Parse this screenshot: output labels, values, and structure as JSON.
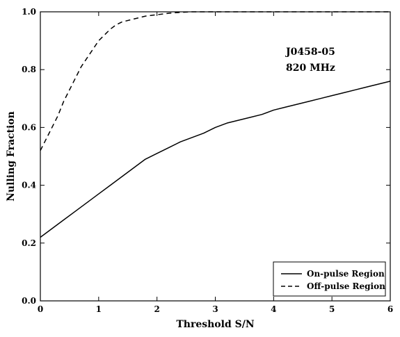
{
  "chart_data": {
    "type": "line",
    "title": "",
    "xlabel": "Threshold S/N",
    "ylabel": "Nulling Fraction",
    "xlim": [
      0,
      6
    ],
    "ylim": [
      0.0,
      1.0
    ],
    "xticks": [
      0,
      1,
      2,
      3,
      4,
      5,
      6
    ],
    "yticks": [
      0.0,
      0.2,
      0.4,
      0.6,
      0.8,
      1.0
    ],
    "xtick_labels": [
      "0",
      "1",
      "2",
      "3",
      "4",
      "5",
      "6"
    ],
    "ytick_labels": [
      "0.0",
      "0.2",
      "0.4",
      "0.6",
      "0.8",
      "1.0"
    ],
    "grid": false,
    "legend_position": "bottom-right",
    "annotations": [
      "J0458-05",
      "820 MHz"
    ],
    "series": [
      {
        "name": "On-pulse Region",
        "style": "solid",
        "color": "#000000",
        "x": [
          0,
          0.2,
          0.4,
          0.6,
          0.8,
          1.0,
          1.2,
          1.4,
          1.6,
          1.8,
          2.0,
          2.2,
          2.4,
          2.6,
          2.8,
          3.0,
          3.2,
          3.4,
          3.6,
          3.8,
          4.0,
          4.2,
          4.4,
          4.6,
          4.8,
          5.0,
          5.2,
          5.4,
          5.6,
          5.8,
          6.0
        ],
        "y": [
          0.22,
          0.25,
          0.28,
          0.31,
          0.34,
          0.37,
          0.4,
          0.43,
          0.46,
          0.49,
          0.51,
          0.53,
          0.55,
          0.565,
          0.58,
          0.6,
          0.615,
          0.625,
          0.635,
          0.645,
          0.66,
          0.67,
          0.68,
          0.69,
          0.7,
          0.71,
          0.72,
          0.73,
          0.74,
          0.75,
          0.76
        ]
      },
      {
        "name": "Off-pulse Region",
        "style": "dashed",
        "color": "#000000",
        "x": [
          0,
          0.1,
          0.2,
          0.3,
          0.4,
          0.5,
          0.6,
          0.7,
          0.8,
          0.9,
          1.0,
          1.1,
          1.2,
          1.3,
          1.4,
          1.6,
          1.8,
          2.0,
          2.2,
          2.4,
          2.6,
          3.0,
          4.0,
          5.0,
          6.0
        ],
        "y": [
          0.52,
          0.56,
          0.6,
          0.64,
          0.69,
          0.73,
          0.77,
          0.81,
          0.84,
          0.87,
          0.9,
          0.92,
          0.94,
          0.955,
          0.965,
          0.975,
          0.985,
          0.99,
          0.995,
          0.998,
          1.0,
          1.0,
          1.0,
          1.0,
          1.0
        ]
      }
    ]
  }
}
